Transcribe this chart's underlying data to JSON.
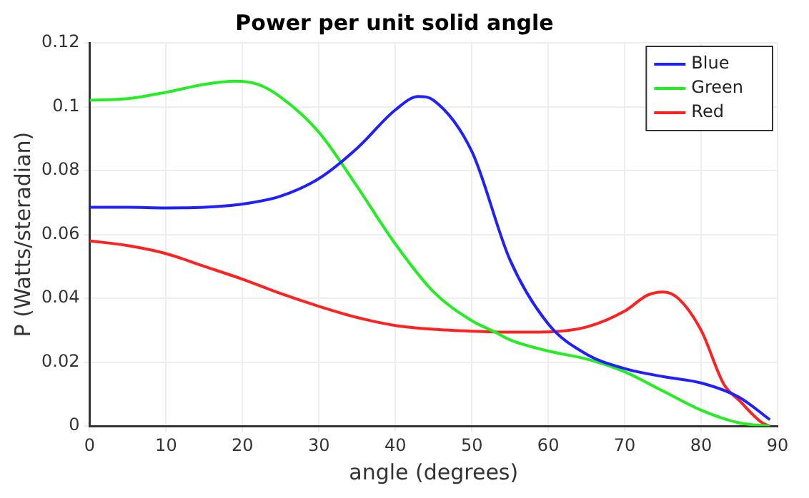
{
  "chart_data": {
    "type": "line",
    "title": "Power per unit solid angle",
    "xlabel": "angle (degrees)",
    "ylabel": "P (Watts/steradian)",
    "xlim": [
      0,
      90
    ],
    "xticks": [
      0,
      10,
      20,
      30,
      40,
      50,
      60,
      70,
      80,
      90
    ],
    "ylim": [
      0,
      0.12
    ],
    "yticks": [
      0,
      0.02,
      0.04,
      0.06,
      0.08,
      0.1,
      0.12
    ],
    "grid": true,
    "legend": "top right",
    "marker": "none",
    "line_style": "solid",
    "series": [
      {
        "name": "Blue",
        "color": "#1f1fff",
        "x": [
          0,
          5,
          10,
          15,
          20,
          25,
          30,
          35,
          40,
          43,
          45,
          50,
          55,
          60,
          65,
          70,
          75,
          80,
          85,
          89
        ],
        "values": [
          0.0685,
          0.0685,
          0.0683,
          0.0685,
          0.0695,
          0.072,
          0.0775,
          0.087,
          0.099,
          0.1032,
          0.102,
          0.086,
          0.052,
          0.032,
          0.0225,
          0.018,
          0.0155,
          0.0135,
          0.009,
          0.002
        ]
      },
      {
        "name": "Green",
        "color": "#22ee22",
        "x": [
          0,
          5,
          10,
          15,
          19,
          22,
          25,
          30,
          35,
          40,
          45,
          50,
          53,
          55,
          60,
          65,
          70,
          75,
          80,
          85,
          89
        ],
        "values": [
          0.102,
          0.1025,
          0.1045,
          0.107,
          0.108,
          0.107,
          0.103,
          0.092,
          0.075,
          0.057,
          0.042,
          0.033,
          0.0295,
          0.027,
          0.0235,
          0.021,
          0.017,
          0.011,
          0.005,
          0.001,
          0
        ]
      },
      {
        "name": "Red",
        "color": "#ff2020",
        "x": [
          0,
          5,
          10,
          15,
          20,
          25,
          30,
          35,
          40,
          45,
          50,
          55,
          60,
          65,
          70,
          73,
          75,
          77,
          80,
          83,
          85,
          88,
          89
        ],
        "values": [
          0.058,
          0.0565,
          0.054,
          0.05,
          0.046,
          0.0415,
          0.0375,
          0.034,
          0.0315,
          0.0303,
          0.0297,
          0.0294,
          0.0295,
          0.031,
          0.036,
          0.041,
          0.042,
          0.04,
          0.03,
          0.013,
          0.008,
          0.001,
          0
        ]
      }
    ]
  }
}
